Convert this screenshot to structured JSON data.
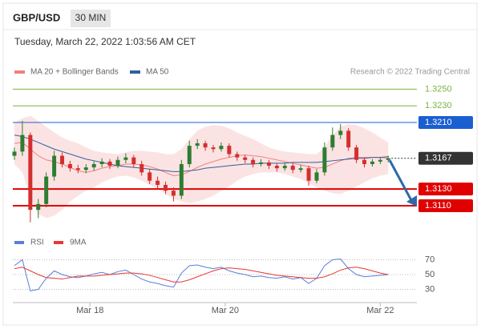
{
  "header": {
    "symbol": "GBP/USD",
    "interval": "30 MIN",
    "timestamp": "Tuesday, March 22, 2022 1:03:56 AM CET"
  },
  "chart_data": [
    {
      "type": "candlestick",
      "source": "Research © 2022 Trading Central",
      "up_color": "#2e7d32",
      "down_color": "#d32f2f",
      "xlim": [
        -0.2,
        50.6
      ],
      "xticks": [
        {
          "value": 9.5,
          "label": "Mar 18"
        },
        {
          "value": 26.5,
          "label": "Mar 20"
        },
        {
          "value": 46,
          "label": "Mar 22"
        }
      ],
      "ylim": [
        1.3083,
        1.3261
      ],
      "candles": {
        "open": [
          1.317,
          1.3175,
          1.3195,
          1.3105,
          1.3112,
          1.3145,
          1.317,
          1.316,
          1.3155,
          1.3153,
          1.3156,
          1.316,
          1.3163,
          1.3158,
          1.3165,
          1.3168,
          1.316,
          1.315,
          1.314,
          1.3135,
          1.3128,
          1.3122,
          1.316,
          1.3182,
          1.3185,
          1.318,
          1.3178,
          1.3182,
          1.3172,
          1.3168,
          1.3165,
          1.316,
          1.3162,
          1.3158,
          1.3155,
          1.3158,
          1.3153,
          1.3155,
          1.314,
          1.315,
          1.318,
          1.3195,
          1.32,
          1.318,
          1.3165,
          1.316,
          1.3163,
          1.3165
        ],
        "high": [
          1.318,
          1.3212,
          1.3198,
          1.3118,
          1.315,
          1.3176,
          1.3174,
          1.3164,
          1.3159,
          1.316,
          1.3164,
          1.3167,
          1.3166,
          1.3169,
          1.3173,
          1.3171,
          1.3164,
          1.3154,
          1.3145,
          1.3139,
          1.3132,
          1.3165,
          1.3188,
          1.319,
          1.3188,
          1.3183,
          1.3186,
          1.3185,
          1.3175,
          1.3171,
          1.3168,
          1.3166,
          1.3165,
          1.3161,
          1.3162,
          1.3161,
          1.3159,
          1.3158,
          1.3154,
          1.3186,
          1.3204,
          1.3208,
          1.3203,
          1.3183,
          1.3168,
          1.3166,
          1.3168,
          1.317
        ],
        "low": [
          1.3165,
          1.317,
          1.309,
          1.3095,
          1.3108,
          1.314,
          1.3156,
          1.3151,
          1.3149,
          1.3149,
          1.3152,
          1.3156,
          1.3154,
          1.3155,
          1.3161,
          1.3156,
          1.3146,
          1.3136,
          1.3131,
          1.3124,
          1.3115,
          1.3118,
          1.3156,
          1.3178,
          1.3176,
          1.3174,
          1.3175,
          1.3168,
          1.3164,
          1.3161,
          1.3156,
          1.3157,
          1.3154,
          1.3151,
          1.3152,
          1.3149,
          1.315,
          1.3134,
          1.3137,
          1.3146,
          1.3176,
          1.319,
          1.3176,
          1.3161,
          1.3156,
          1.3157,
          1.316,
          1.3162
        ],
        "close": [
          1.3175,
          1.3195,
          1.3105,
          1.3112,
          1.3145,
          1.317,
          1.316,
          1.3155,
          1.3153,
          1.3156,
          1.316,
          1.3163,
          1.3158,
          1.3165,
          1.3168,
          1.316,
          1.315,
          1.314,
          1.3135,
          1.3128,
          1.3122,
          1.316,
          1.3182,
          1.3185,
          1.318,
          1.3178,
          1.3182,
          1.3172,
          1.3168,
          1.3165,
          1.316,
          1.3162,
          1.3158,
          1.3155,
          1.3158,
          1.3153,
          1.3155,
          1.314,
          1.315,
          1.318,
          1.3195,
          1.32,
          1.318,
          1.3165,
          1.316,
          1.3163,
          1.3165,
          1.3167
        ]
      },
      "series": [
        {
          "name": "MA 20 + Bollinger Bands",
          "color": "#f08080",
          "values": [
            1.3185,
            1.3186,
            1.3178,
            1.317,
            1.3165,
            1.3163,
            1.316,
            1.3156,
            1.3152,
            1.315,
            1.3152,
            1.3155,
            1.3157,
            1.3158,
            1.316,
            1.316,
            1.3159,
            1.3157,
            1.3154,
            1.315,
            1.3146,
            1.3147,
            1.3151,
            1.3156,
            1.316,
            1.3163,
            1.3166,
            1.3168,
            1.317,
            1.3171,
            1.317,
            1.3169,
            1.3167,
            1.3165,
            1.3163,
            1.3161,
            1.3159,
            1.3157,
            1.3155,
            1.3156,
            1.316,
            1.3164,
            1.3167,
            1.3168,
            1.3168,
            1.3168,
            1.3168,
            1.3167
          ],
          "upper": [
            1.321,
            1.3215,
            1.3218,
            1.3212,
            1.3205,
            1.3198,
            1.3192,
            1.3188,
            1.3185,
            1.318,
            1.3176,
            1.3174,
            1.3173,
            1.3172,
            1.3174,
            1.3176,
            1.3176,
            1.3175,
            1.3174,
            1.3172,
            1.3172,
            1.3178,
            1.319,
            1.32,
            1.3205,
            1.3207,
            1.3206,
            1.3203,
            1.3198,
            1.3194,
            1.319,
            1.3185,
            1.318,
            1.3177,
            1.3175,
            1.3174,
            1.3173,
            1.3172,
            1.3172,
            1.318,
            1.3195,
            1.3205,
            1.3208,
            1.3207,
            1.3203,
            1.3198,
            1.3192,
            1.3186
          ],
          "lower": [
            1.316,
            1.315,
            1.312,
            1.31,
            1.3095,
            1.3098,
            1.3105,
            1.3115,
            1.3122,
            1.3128,
            1.3132,
            1.3138,
            1.3142,
            1.3145,
            1.3146,
            1.3144,
            1.314,
            1.3135,
            1.313,
            1.3124,
            1.3118,
            1.3115,
            1.3113,
            1.3115,
            1.3118,
            1.3122,
            1.3128,
            1.3133,
            1.314,
            1.3145,
            1.3148,
            1.315,
            1.315,
            1.315,
            1.3148,
            1.3145,
            1.3142,
            1.3137,
            1.3132,
            1.3128,
            1.3125,
            1.3124,
            1.3128,
            1.3133,
            1.3138,
            1.3143,
            1.3146,
            1.3148
          ]
        },
        {
          "name": "MA 50",
          "color": "#2f5f9e",
          "values": [
            1.3195,
            1.3193,
            1.319,
            1.3186,
            1.3182,
            1.3178,
            1.3175,
            1.3172,
            1.3169,
            1.3166,
            1.3164,
            1.3162,
            1.316,
            1.3158,
            1.3157,
            1.3156,
            1.3155,
            1.3154,
            1.3153,
            1.3152,
            1.3151,
            1.3151,
            1.3152,
            1.3153,
            1.3155,
            1.3156,
            1.3157,
            1.3158,
            1.3159,
            1.316,
            1.316,
            1.3161,
            1.3161,
            1.3161,
            1.3161,
            1.3162,
            1.3162,
            1.3162,
            1.3162,
            1.3163,
            1.3164,
            1.3165,
            1.3166,
            1.3167,
            1.3167,
            1.3168,
            1.3168,
            1.3169
          ]
        }
      ],
      "levels": [
        {
          "value": 1.325,
          "label": "1.3250",
          "color": "#7cb342",
          "boxed": false,
          "line_width": 1
        },
        {
          "value": 1.323,
          "label": "1.3230",
          "color": "#7cb342",
          "boxed": false,
          "line_width": 1
        },
        {
          "value": 1.321,
          "label": "1.3210",
          "color": "#1a5fd0",
          "boxed": true,
          "line_width": 1
        },
        {
          "value": 1.3167,
          "color": "#333333",
          "boxed": true,
          "line_width": 1,
          "dotted": true
        },
        {
          "value": 1.313,
          "label": "1.3130",
          "color": "#e00000",
          "boxed": true,
          "line_width": 2
        },
        {
          "value": 1.311,
          "label": "1.3110",
          "color": "#e00000",
          "boxed": true,
          "line_width": 2
        }
      ]
    },
    {
      "type": "line",
      "ylim": [
        23,
        77
      ],
      "yticks": [
        70,
        50,
        30
      ],
      "grid": true,
      "series": [
        {
          "name": "RSI",
          "color": "#5b7fd6",
          "values": [
            62,
            70,
            28,
            30,
            45,
            55,
            50,
            47,
            46,
            48,
            51,
            53,
            50,
            54,
            56,
            50,
            44,
            40,
            38,
            35,
            33,
            52,
            62,
            63,
            60,
            58,
            60,
            55,
            52,
            50,
            47,
            48,
            46,
            45,
            47,
            44,
            46,
            38,
            45,
            62,
            70,
            71,
            58,
            50,
            47,
            48,
            49,
            50
          ]
        },
        {
          "name": "9MA",
          "color": "#e53935",
          "values": [
            58,
            60,
            55,
            50,
            46,
            45,
            44,
            46,
            48,
            48,
            48,
            49,
            50,
            51,
            52,
            52,
            51,
            49,
            46,
            43,
            40,
            40,
            43,
            47,
            51,
            55,
            58,
            59,
            58,
            57,
            55,
            53,
            51,
            49,
            48,
            47,
            46,
            45,
            45,
            47,
            51,
            56,
            59,
            60,
            58,
            55,
            52,
            50
          ]
        }
      ]
    }
  ]
}
